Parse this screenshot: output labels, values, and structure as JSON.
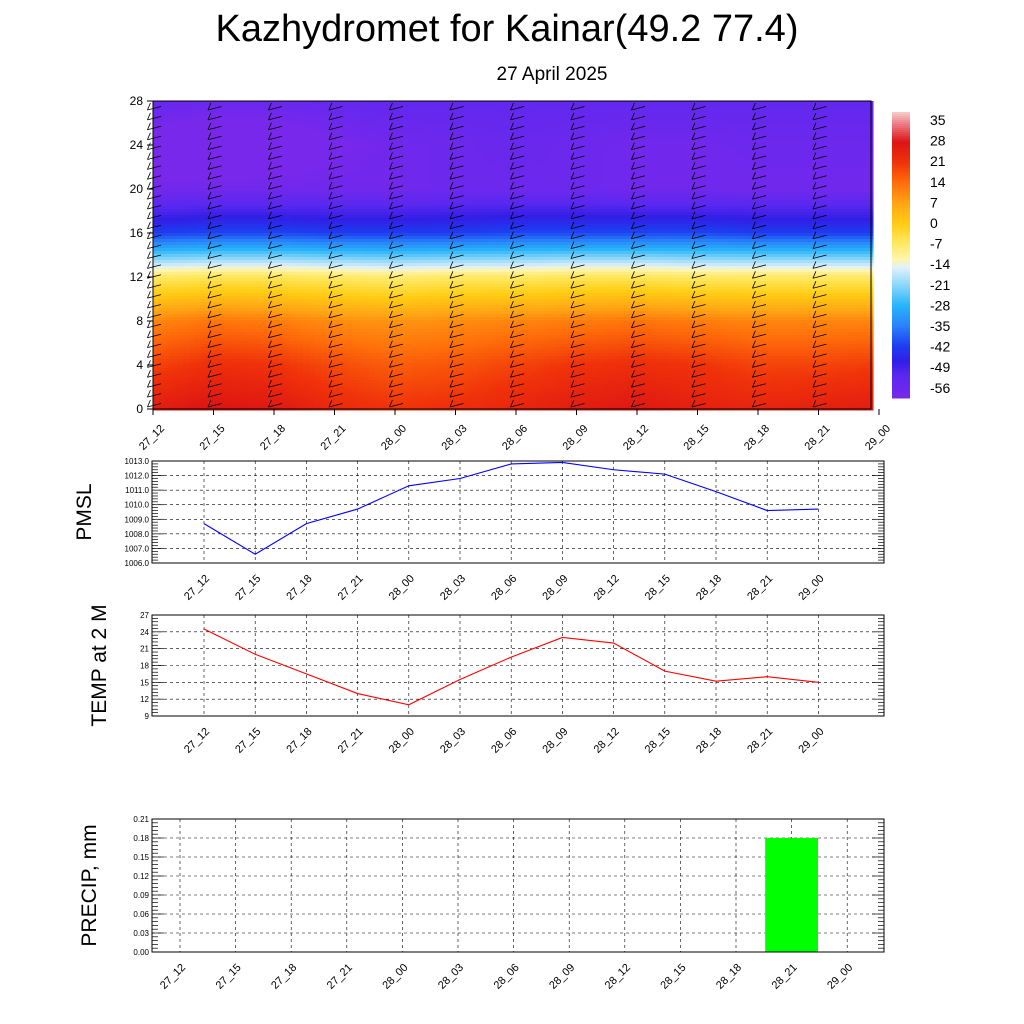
{
  "header": {
    "title": "Kazhydromet for Kainar(49.2 77.4)",
    "subtitle": "27 April 2025"
  },
  "chart_data": [
    {
      "type": "heatmap",
      "title": "Kazhydromet for Kainar(49.2 77.4)",
      "subtitle": "27 April 2025",
      "ylabel": "",
      "categories": [
        "27_12",
        "27_15",
        "27_18",
        "27_21",
        "28_00",
        "28_03",
        "28_06",
        "28_09",
        "28_12",
        "28_15",
        "28_18",
        "28_21",
        "29_00"
      ],
      "y_ticks": [
        0,
        4,
        8,
        12,
        16,
        20,
        24,
        28
      ],
      "ylim": [
        0,
        28
      ],
      "levels": [
        0,
        4,
        8,
        12,
        16,
        20,
        24,
        28
      ],
      "values_by_level": [
        [
          26,
          28,
          27,
          23,
          21,
          22,
          24,
          26,
          27,
          25,
          24,
          25,
          26
        ],
        [
          19,
          22,
          21,
          18,
          16,
          17,
          19,
          21,
          22,
          21,
          19,
          19,
          20
        ],
        [
          11,
          13,
          12,
          10,
          9,
          10,
          11,
          12,
          13,
          12,
          11,
          11,
          11
        ],
        [
          -7,
          -6,
          -6,
          -7,
          -8,
          -7,
          -7,
          -6,
          -6,
          -7,
          -7,
          -7,
          -7
        ],
        [
          -42,
          -41,
          -41,
          -42,
          -42,
          -42,
          -41,
          -41,
          -41,
          -41,
          -42,
          -42,
          -42
        ],
        [
          -59,
          -58,
          -58,
          -58,
          -58,
          -57,
          -57,
          -57,
          -58,
          -58,
          -58,
          -58,
          -58
        ],
        [
          -62,
          -66,
          -64,
          -60,
          -58,
          -57,
          -56,
          -57,
          -58,
          -58,
          -57,
          -57,
          -57
        ],
        [
          -55,
          -56,
          -56,
          -55,
          -54,
          -54,
          -54,
          -54,
          -54,
          -54,
          -54,
          -54,
          -54
        ]
      ],
      "colorbar_labels": [
        "35",
        "28",
        "21",
        "14",
        "7",
        "0",
        "-7",
        "-14",
        "-21",
        "-28",
        "-35",
        "-42",
        "-49",
        "-56"
      ],
      "colorbar_range": [
        -60,
        38
      ],
      "wind_barbs": true,
      "grid": false
    },
    {
      "type": "line",
      "ylabel": "PMSL",
      "categories": [
        "27_12",
        "27_15",
        "27_18",
        "27_21",
        "28_00",
        "28_03",
        "28_06",
        "28_09",
        "28_12",
        "28_15",
        "28_18",
        "28_21",
        "29_00"
      ],
      "series": [
        {
          "values": [
            1008.7,
            1006.6,
            1008.7,
            1009.7,
            1011.3,
            1011.8,
            1012.8,
            1012.9,
            1012.4,
            1012.1,
            1010.9,
            1009.6,
            1009.7
          ]
        }
      ],
      "ylim": [
        1006.0,
        1013.0
      ],
      "y_ticks": [
        "1006.0",
        "1007.0",
        "1008.0",
        "1009.0",
        "1010.0",
        "1011.0",
        "1012.0",
        "1013.0"
      ],
      "grid": true
    },
    {
      "type": "line",
      "ylabel": "TEMP at 2 M",
      "categories": [
        "27_12",
        "27_15",
        "27_18",
        "27_21",
        "28_00",
        "28_03",
        "28_06",
        "28_09",
        "28_12",
        "28_15",
        "28_18",
        "28_21",
        "29_00"
      ],
      "series": [
        {
          "values": [
            24.5,
            20.0,
            16.5,
            13.0,
            11.0,
            15.5,
            19.5,
            23.0,
            22.0,
            17.0,
            15.2,
            16.0,
            15.0
          ]
        }
      ],
      "ylim": [
        9,
        27
      ],
      "y_ticks": [
        "9",
        "12",
        "15",
        "18",
        "21",
        "24",
        "27"
      ],
      "grid": true
    },
    {
      "type": "bar",
      "ylabel": "PRECIP, mm",
      "categories": [
        "27_12",
        "27_15",
        "27_18",
        "27_21",
        "28_00",
        "28_03",
        "28_06",
        "28_09",
        "28_12",
        "28_15",
        "28_18",
        "28_21",
        "29_00"
      ],
      "values": [
        0,
        0,
        0,
        0,
        0,
        0,
        0,
        0,
        0,
        0,
        0,
        0.18,
        0
      ],
      "ylim": [
        0,
        0.21
      ],
      "y_ticks": [
        "0.00",
        "0.03",
        "0.06",
        "0.09",
        "0.12",
        "0.15",
        "0.18",
        "0.21"
      ],
      "grid": true
    }
  ],
  "colors": {
    "pmsl_line": "#0000ff",
    "temp_line": "#ff0000",
    "precip_bar": "#00ff00"
  }
}
